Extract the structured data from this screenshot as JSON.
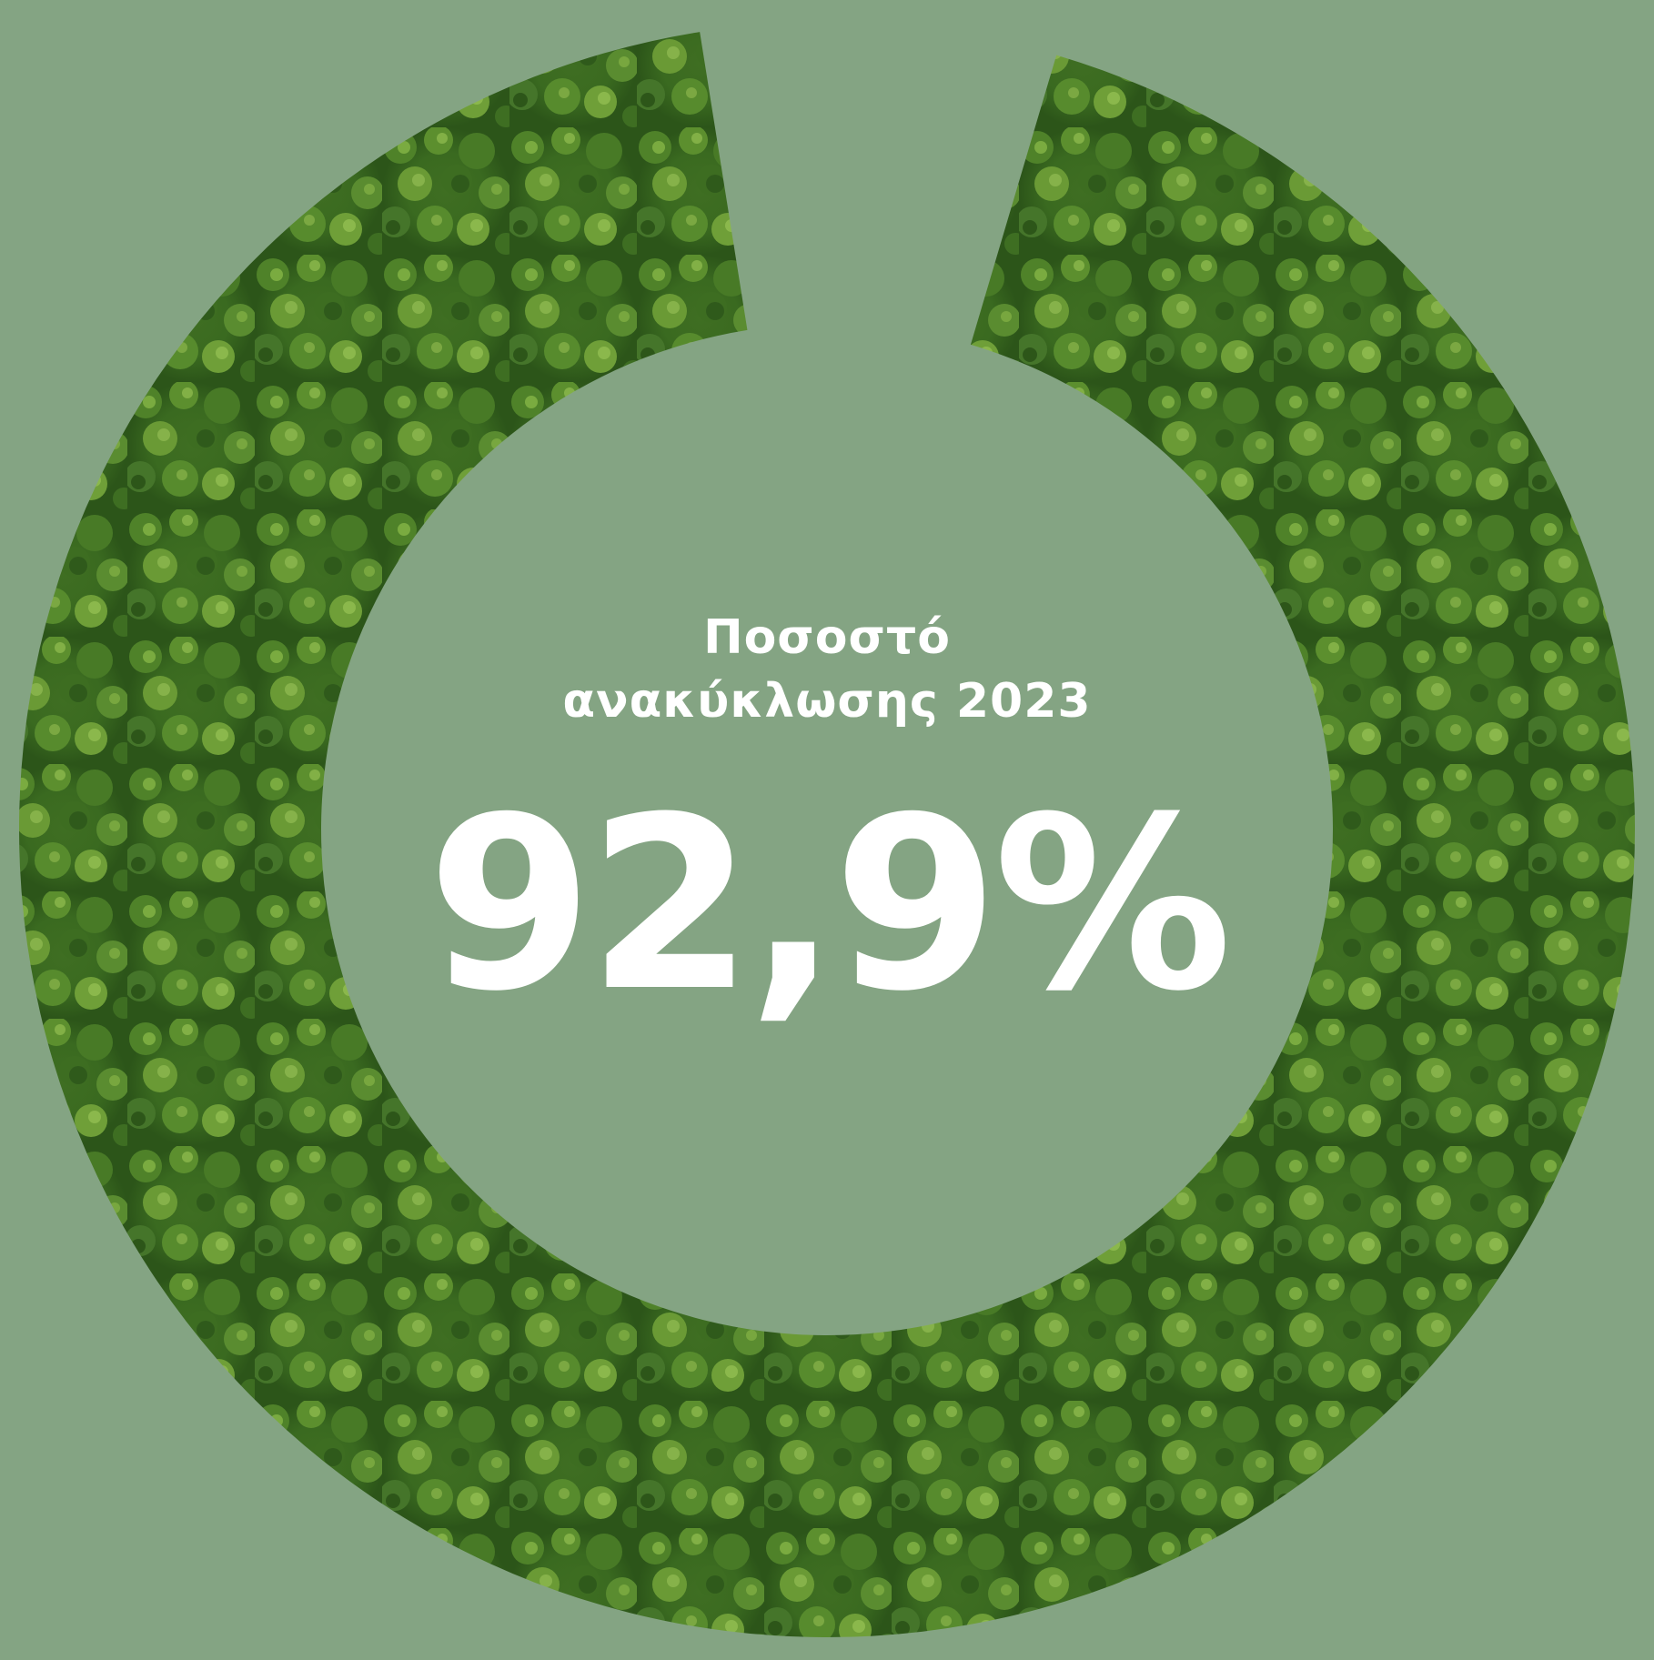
{
  "chart_data": {
    "type": "pie",
    "title": "Ποσοστό ανακύκλωσης 2023",
    "slices": [
      {
        "label": "",
        "value": 92.9,
        "fill": "forest-texture"
      },
      {
        "label": "",
        "value": 7.1,
        "fill": "background-gap"
      }
    ],
    "value_label": "92,9%",
    "donut": true
  },
  "labels": {
    "line1": "Ποσοστό",
    "line2": "ανακύκλωσης 2023",
    "value": "92,9%"
  },
  "colors": {
    "background": "#84a483",
    "text": "#ffffff",
    "forest_dark": "#2f5a1c",
    "forest_mid": "#4a7a28",
    "forest_light": "#7aa63a"
  }
}
